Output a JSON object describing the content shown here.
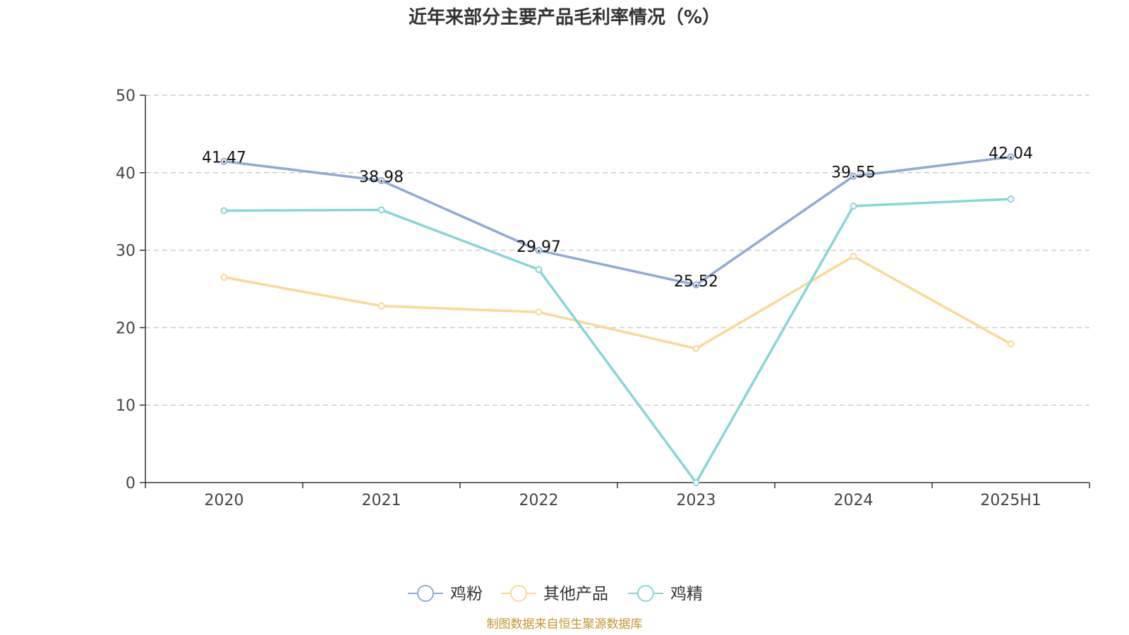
{
  "chart_data": {
    "type": "line",
    "title": "近年来部分主要产品毛利率情况（%）",
    "xlabel": "",
    "ylabel": "",
    "categories": [
      "2020",
      "2021",
      "2022",
      "2023",
      "2024",
      "2025H1"
    ],
    "ylim": [
      0,
      50
    ],
    "yticks": [
      0,
      10,
      20,
      30,
      40,
      50
    ],
    "grid": true,
    "legend_position": "bottom",
    "series": [
      {
        "name": "鸡粉",
        "color": "#8eaad6",
        "values": [
          41.47,
          38.98,
          29.97,
          25.52,
          39.55,
          42.04
        ],
        "show_labels": true
      },
      {
        "name": "其他产品",
        "color": "#fbd894",
        "values": [
          26.5,
          22.8,
          22.0,
          17.3,
          29.2,
          17.9
        ],
        "show_labels": false
      },
      {
        "name": "鸡精",
        "color": "#86d6d7",
        "values": [
          35.1,
          35.2,
          27.5,
          0.0,
          35.7,
          36.6
        ],
        "show_labels": false
      }
    ],
    "source": "制图数据来自恒生聚源数据库"
  }
}
